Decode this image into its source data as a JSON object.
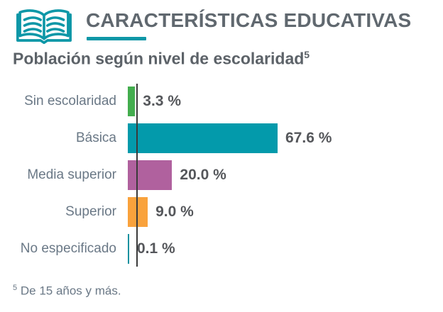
{
  "page": {
    "background": "#ffffff"
  },
  "header": {
    "icon": "open-book-icon",
    "title": "CARACTERÍSTICAS EDUCATIVAS",
    "title_color": "#60686f",
    "accent_color": "#0d97a7"
  },
  "subtitle": {
    "text": "Población según nivel de escolaridad",
    "superscript": "5",
    "color": "#5c6268"
  },
  "chart_data": {
    "type": "bar",
    "orientation": "horizontal",
    "title": "Población según nivel de escolaridad (5)",
    "categories": [
      "Sin escolaridad",
      "Básica",
      "Media superior",
      "Superior",
      "No especificado"
    ],
    "values": [
      3.3,
      67.6,
      20.0,
      9.0,
      0.1
    ],
    "value_labels": [
      "3.3 %",
      "67.6 %",
      "20.0 %",
      "9.0 %",
      "0.1 %"
    ],
    "bar_colors": [
      "#43ad4e",
      "#039aab",
      "#b0619e",
      "#f9a23c",
      "#17919f"
    ],
    "unit": "%",
    "xlim": [
      0,
      70
    ],
    "grid": false,
    "legend": false,
    "axis_color": "#3a3a3a",
    "label_color": "#6a7886",
    "value_color": "#55575b"
  },
  "footnote": {
    "superscript": "5",
    "text": "De 15 años y más.",
    "color": "#6a7886"
  }
}
